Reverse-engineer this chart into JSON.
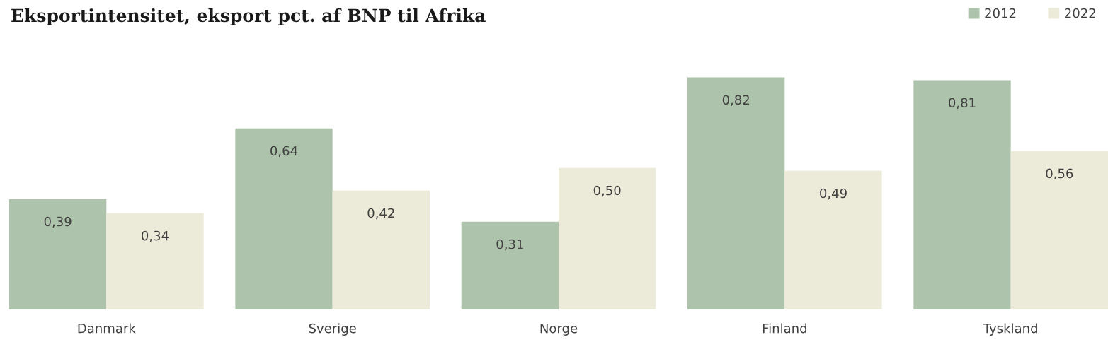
{
  "chart_data": {
    "type": "bar",
    "title": "Eksportintensitet, eksport pct. af BNP til Afrika",
    "categories": [
      "Danmark",
      "Sverige",
      "Norge",
      "Finland",
      "Tyskland"
    ],
    "series": [
      {
        "name": "2012",
        "color": "#aec3ab",
        "values": [
          0.39,
          0.64,
          0.31,
          0.82,
          0.81
        ],
        "value_labels": [
          "0,39",
          "0,64",
          "0,31",
          "0,82",
          "0,81"
        ]
      },
      {
        "name": "2022",
        "color": "#ecead8",
        "values": [
          0.34,
          0.42,
          0.5,
          0.49,
          0.56
        ],
        "value_labels": [
          "0,34",
          "0,42",
          "0,50",
          "0,49",
          "0,56"
        ]
      }
    ],
    "legend": "top right",
    "grid": false
  }
}
